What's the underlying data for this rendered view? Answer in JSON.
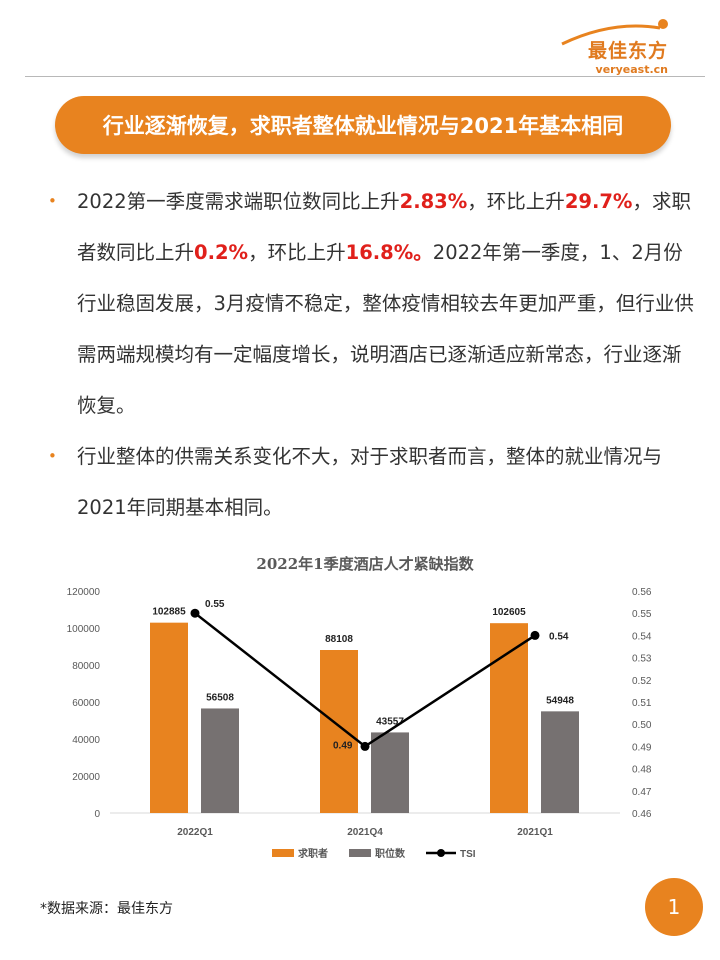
{
  "brand": {
    "name": "最佳东方",
    "url": "veryeast.cn",
    "color": "#E8831F"
  },
  "banner": {
    "title": "行业逐渐恢复，求职者整体就业情况与2021年基本相同"
  },
  "bullets": [
    {
      "parts": [
        {
          "text": "2022第一季度需求端职位数同比上升",
          "highlight": false
        },
        {
          "text": "2.83%",
          "highlight": true
        },
        {
          "text": "，环比上升",
          "highlight": false
        },
        {
          "text": "29.7%",
          "highlight": true
        },
        {
          "text": "，求职者数同比上升",
          "highlight": false
        },
        {
          "text": "0.2%",
          "highlight": true
        },
        {
          "text": "，环比上升",
          "highlight": false
        },
        {
          "text": "16.8%。",
          "highlight": true
        },
        {
          "text": "2022年第一季度，1、2月份行业稳固发展，3月疫情不稳定，整体疫情相较去年更加严重，但行业供需两端规模均有一定幅度增长，说明酒店已逐渐适应新常态，行业逐渐恢复。",
          "highlight": false
        }
      ]
    },
    {
      "parts": [
        {
          "text": "行业整体的供需关系变化不大，对于求职者而言，整体的就业情况与2021年同期基本相同。",
          "highlight": false
        }
      ]
    }
  ],
  "chart_data": {
    "type": "bar",
    "title": "2022年1季度酒店人才紧缺指数",
    "categories": [
      "2022Q1",
      "2021Q4",
      "2021Q1"
    ],
    "series": [
      {
        "name": "求职者",
        "type": "bar",
        "axis": "left",
        "color": "#E8831F",
        "values": [
          102885,
          88108,
          102605
        ]
      },
      {
        "name": "职位数",
        "type": "bar",
        "axis": "left",
        "color": "#767171",
        "values": [
          56508,
          43557,
          54948
        ]
      },
      {
        "name": "TSI",
        "type": "line",
        "axis": "right",
        "color": "#000000",
        "values": [
          0.55,
          0.49,
          0.54
        ]
      }
    ],
    "ylim": [
      0,
      120000
    ],
    "y_ticks": [
      "0",
      "20000",
      "40000",
      "60000",
      "80000",
      "100000",
      "120000"
    ],
    "y2lim": [
      0.46,
      0.56
    ],
    "y2_ticks": [
      "0.46",
      "0.47",
      "0.48",
      "0.49",
      "0.50",
      "0.51",
      "0.52",
      "0.53",
      "0.54",
      "0.55",
      "0.56"
    ],
    "grid": false,
    "legend": "bottom"
  },
  "footer": {
    "source": "*数据来源：最佳东方",
    "page": "1"
  }
}
